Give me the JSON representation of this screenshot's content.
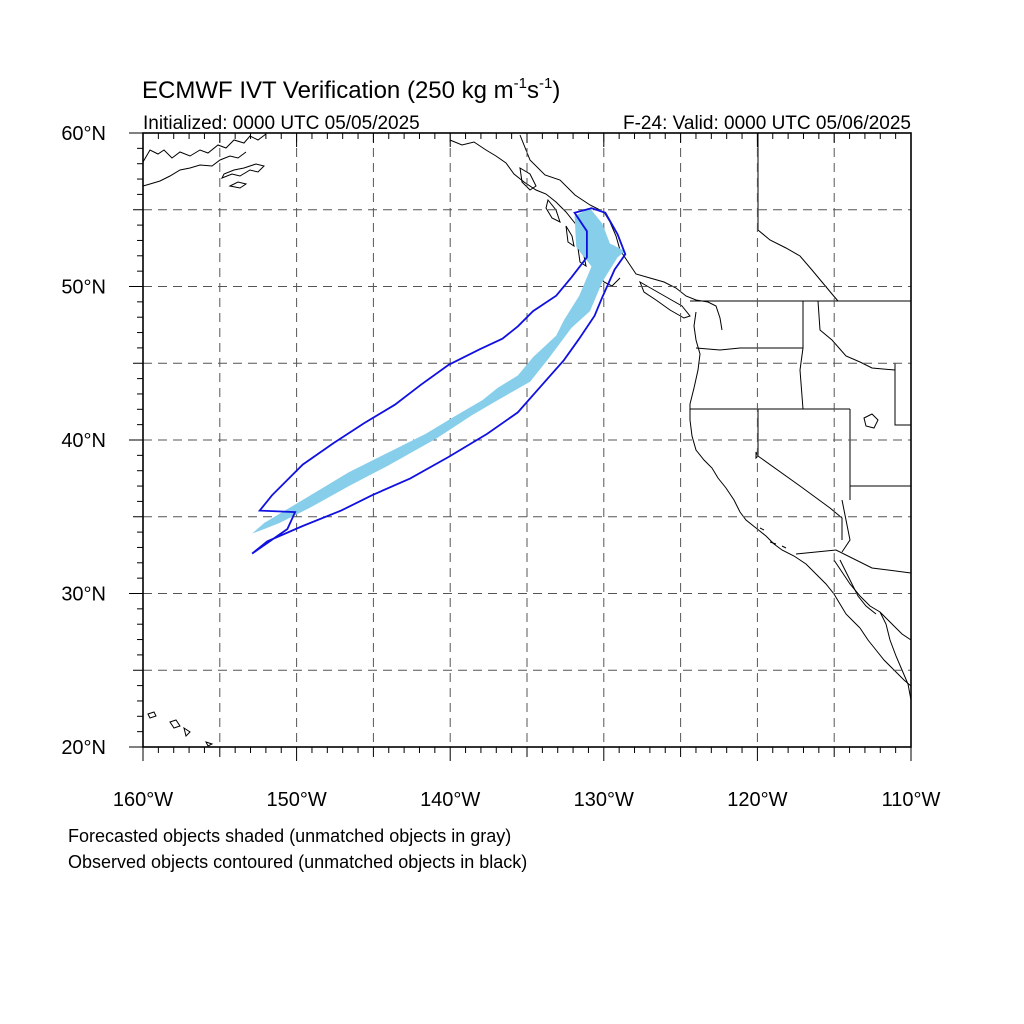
{
  "title": {
    "main": "ECMWF IVT Verification (250 kg m",
    "exp1": "-1",
    "s": "s",
    "exp2": "-1",
    "close": ")"
  },
  "subtitle_left": "Initialized: 0000 UTC 05/05/2025",
  "subtitle_right": "F-24: Valid: 0000 UTC 05/06/2025",
  "axes": {
    "lon_range": [
      -160,
      -110
    ],
    "lat_range": [
      20,
      60
    ],
    "lon_labels": [
      {
        "lon": -160,
        "text": "160°W"
      },
      {
        "lon": -150,
        "text": "150°W"
      },
      {
        "lon": -140,
        "text": "140°W"
      },
      {
        "lon": -130,
        "text": "130°W"
      },
      {
        "lon": -120,
        "text": "120°W"
      },
      {
        "lon": -110,
        "text": "110°W"
      }
    ],
    "lat_labels": [
      {
        "lat": 60,
        "text": "60°N"
      },
      {
        "lat": 50,
        "text": "50°N"
      },
      {
        "lat": 40,
        "text": "40°N"
      },
      {
        "lat": 30,
        "text": "30°N"
      },
      {
        "lat": 20,
        "text": "20°N"
      }
    ],
    "grid_spacing_deg": 5,
    "grid_style": "dashed"
  },
  "objects": {
    "forecast_fill_color": "#87ceeb",
    "observed_contour_color": "#1010e0",
    "forecast_object_lonlat": [
      [
        -152.9,
        33.9
      ],
      [
        -152.1,
        34.6
      ],
      [
        -150.1,
        35.8
      ],
      [
        -146.6,
        37.9
      ],
      [
        -144.6,
        38.9
      ],
      [
        -141.6,
        40.4
      ],
      [
        -139.6,
        41.6
      ],
      [
        -137.9,
        42.6
      ],
      [
        -136.9,
        43.4
      ],
      [
        -135.6,
        44.2
      ],
      [
        -134.6,
        45.4
      ],
      [
        -133.1,
        46.8
      ],
      [
        -132.6,
        47.8
      ],
      [
        -131.6,
        49.4
      ],
      [
        -130.8,
        51.3
      ],
      [
        -131.8,
        52.6
      ],
      [
        -131.9,
        54.6
      ],
      [
        -130.9,
        55.1
      ],
      [
        -130.1,
        54.1
      ],
      [
        -129.6,
        52.8
      ],
      [
        -128.6,
        52.3
      ],
      [
        -129.1,
        51.9
      ],
      [
        -130.1,
        50.3
      ],
      [
        -130.9,
        48.4
      ],
      [
        -132.1,
        47.3
      ],
      [
        -133.6,
        45.3
      ],
      [
        -134.8,
        43.8
      ],
      [
        -136.9,
        42.6
      ],
      [
        -138.6,
        41.6
      ],
      [
        -140.9,
        40.1
      ],
      [
        -144.1,
        38.3
      ],
      [
        -146.6,
        37.0
      ],
      [
        -149.1,
        35.6
      ],
      [
        -151.1,
        34.6
      ],
      [
        -152.1,
        34.2
      ]
    ],
    "observed_object_lonlat": [
      [
        -152.9,
        32.6
      ],
      [
        -151.9,
        33.4
      ],
      [
        -149.6,
        34.4
      ],
      [
        -147.1,
        35.4
      ],
      [
        -145.1,
        36.4
      ],
      [
        -142.6,
        37.5
      ],
      [
        -140.1,
        38.9
      ],
      [
        -137.6,
        40.4
      ],
      [
        -135.6,
        41.8
      ],
      [
        -134.1,
        43.5
      ],
      [
        -132.6,
        45.2
      ],
      [
        -131.6,
        46.6
      ],
      [
        -130.6,
        48.1
      ],
      [
        -130.1,
        49.3
      ],
      [
        -129.3,
        51.1
      ],
      [
        -128.6,
        52.1
      ],
      [
        -129.1,
        53.4
      ],
      [
        -129.9,
        54.8
      ],
      [
        -130.8,
        55.1
      ],
      [
        -131.9,
        54.8
      ],
      [
        -131.1,
        53.6
      ],
      [
        -131.1,
        51.9
      ],
      [
        -132.1,
        50.6
      ],
      [
        -133.1,
        49.4
      ],
      [
        -134.6,
        48.4
      ],
      [
        -135.6,
        47.4
      ],
      [
        -136.6,
        46.6
      ],
      [
        -138.1,
        45.9
      ],
      [
        -140.1,
        44.9
      ],
      [
        -141.9,
        43.6
      ],
      [
        -143.6,
        42.3
      ],
      [
        -145.6,
        41.1
      ],
      [
        -147.6,
        39.8
      ],
      [
        -149.6,
        38.4
      ],
      [
        -151.6,
        36.4
      ],
      [
        -152.4,
        35.4
      ],
      [
        -150.1,
        35.3
      ],
      [
        -150.6,
        34.2
      ]
    ]
  },
  "footnotes": {
    "line1": "Forecasted objects shaded (unmatched objects in gray)",
    "line2": "Observed objects contoured (unmatched objects in black)"
  }
}
